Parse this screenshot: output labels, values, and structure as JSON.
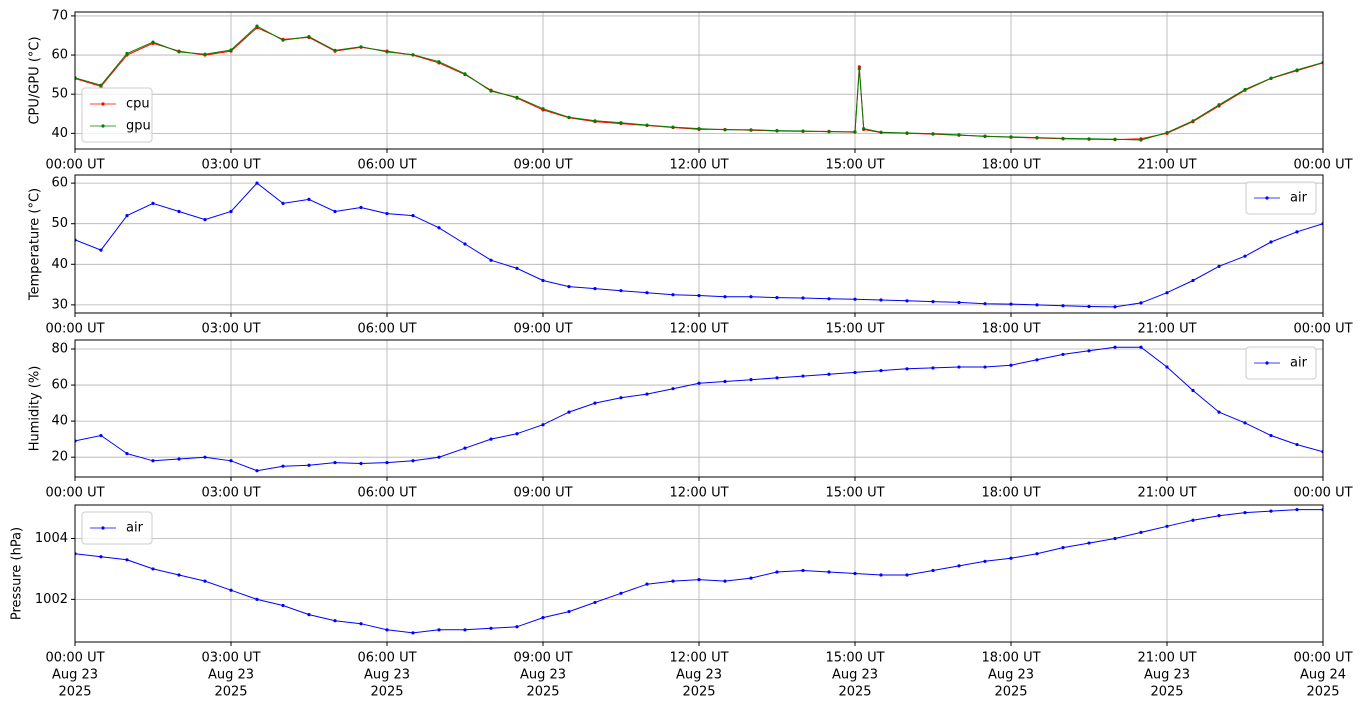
{
  "chart_data": [
    {
      "type": "line",
      "ylabel": "CPU/GPU (°C)",
      "x": [
        "2025-08-23 00:00",
        "2025-08-23 00:30",
        "2025-08-23 01:00",
        "2025-08-23 01:30",
        "2025-08-23 02:00",
        "2025-08-23 02:30",
        "2025-08-23 03:00",
        "2025-08-23 03:30",
        "2025-08-23 04:00",
        "2025-08-23 04:30",
        "2025-08-23 05:00",
        "2025-08-23 05:30",
        "2025-08-23 06:00",
        "2025-08-23 06:30",
        "2025-08-23 07:00",
        "2025-08-23 07:30",
        "2025-08-23 08:00",
        "2025-08-23 08:30",
        "2025-08-23 09:00",
        "2025-08-23 09:30",
        "2025-08-23 10:00",
        "2025-08-23 10:30",
        "2025-08-23 11:00",
        "2025-08-23 11:30",
        "2025-08-23 12:00",
        "2025-08-23 12:30",
        "2025-08-23 13:00",
        "2025-08-23 13:30",
        "2025-08-23 14:00",
        "2025-08-23 14:30",
        "2025-08-23 15:00",
        "2025-08-23 15:05",
        "2025-08-23 15:10",
        "2025-08-23 15:30",
        "2025-08-23 16:00",
        "2025-08-23 16:30",
        "2025-08-23 17:00",
        "2025-08-23 17:30",
        "2025-08-23 18:00",
        "2025-08-23 18:30",
        "2025-08-23 19:00",
        "2025-08-23 19:30",
        "2025-08-23 20:00",
        "2025-08-23 20:30",
        "2025-08-23 21:00",
        "2025-08-23 21:30",
        "2025-08-23 22:00",
        "2025-08-23 22:30",
        "2025-08-23 23:00",
        "2025-08-23 23:30",
        "2025-08-24 00:00"
      ],
      "series": [
        {
          "name": "cpu",
          "color": "#ff0000",
          "values": [
            54,
            52,
            60,
            63,
            61,
            60,
            61,
            67,
            64,
            64.5,
            61,
            62,
            61,
            60,
            58,
            55,
            51,
            49,
            46,
            44,
            43,
            42.5,
            42,
            41.5,
            41,
            41,
            40.8,
            40.6,
            40.5,
            40.5,
            40.3,
            57,
            41,
            40.2,
            40,
            39.8,
            39.5,
            39.3,
            39,
            38.8,
            38.6,
            38.5,
            38.4,
            38.6,
            40,
            43,
            47,
            51,
            54,
            56,
            58
          ]
        },
        {
          "name": "gpu",
          "color": "#008000",
          "values": [
            54.2,
            52.3,
            60.4,
            63.3,
            60.8,
            60.2,
            61.3,
            67.4,
            63.8,
            64.7,
            61.2,
            62.1,
            60.8,
            60.1,
            58.3,
            55.2,
            50.8,
            49.2,
            46.3,
            44.1,
            43.2,
            42.7,
            42.1,
            41.6,
            41.2,
            40.9,
            40.9,
            40.7,
            40.6,
            40.4,
            40.4,
            56.5,
            41.2,
            40.3,
            40.1,
            39.9,
            39.6,
            39.2,
            39.1,
            38.9,
            38.7,
            38.6,
            38.5,
            38.3,
            40.2,
            43.2,
            47.3,
            51.2,
            54.1,
            56.2,
            58.1
          ]
        }
      ],
      "xlim": [
        "2025-08-23 00:00",
        "2025-08-24 00:00"
      ],
      "xticks": [
        {
          "value": "2025-08-23 00:00",
          "label": "00:00 UT"
        },
        {
          "value": "2025-08-23 03:00",
          "label": "03:00 UT"
        },
        {
          "value": "2025-08-23 06:00",
          "label": "06:00 UT"
        },
        {
          "value": "2025-08-23 09:00",
          "label": "09:00 UT"
        },
        {
          "value": "2025-08-23 12:00",
          "label": "12:00 UT"
        },
        {
          "value": "2025-08-23 15:00",
          "label": "15:00 UT"
        },
        {
          "value": "2025-08-23 18:00",
          "label": "18:00 UT"
        },
        {
          "value": "2025-08-23 21:00",
          "label": "21:00 UT"
        },
        {
          "value": "2025-08-24 00:00",
          "label": "00:00 UT"
        }
      ],
      "ylim": [
        36,
        71
      ],
      "yticks": [
        40,
        50,
        60,
        70
      ],
      "grid": true,
      "legend": "lower left"
    },
    {
      "type": "line",
      "ylabel": "Temperature (°C)",
      "x": [
        "2025-08-23 00:00",
        "2025-08-23 00:30",
        "2025-08-23 01:00",
        "2025-08-23 01:30",
        "2025-08-23 02:00",
        "2025-08-23 02:30",
        "2025-08-23 03:00",
        "2025-08-23 03:30",
        "2025-08-23 04:00",
        "2025-08-23 04:30",
        "2025-08-23 05:00",
        "2025-08-23 05:30",
        "2025-08-23 06:00",
        "2025-08-23 06:30",
        "2025-08-23 07:00",
        "2025-08-23 07:30",
        "2025-08-23 08:00",
        "2025-08-23 08:30",
        "2025-08-23 09:00",
        "2025-08-23 09:30",
        "2025-08-23 10:00",
        "2025-08-23 10:30",
        "2025-08-23 11:00",
        "2025-08-23 11:30",
        "2025-08-23 12:00",
        "2025-08-23 12:30",
        "2025-08-23 13:00",
        "2025-08-23 13:30",
        "2025-08-23 14:00",
        "2025-08-23 14:30",
        "2025-08-23 15:00",
        "2025-08-23 15:30",
        "2025-08-23 16:00",
        "2025-08-23 16:30",
        "2025-08-23 17:00",
        "2025-08-23 17:30",
        "2025-08-23 18:00",
        "2025-08-23 18:30",
        "2025-08-23 19:00",
        "2025-08-23 19:30",
        "2025-08-23 20:00",
        "2025-08-23 20:30",
        "2025-08-23 21:00",
        "2025-08-23 21:30",
        "2025-08-23 22:00",
        "2025-08-23 22:30",
        "2025-08-23 23:00",
        "2025-08-23 23:30",
        "2025-08-24 00:00"
      ],
      "series": [
        {
          "name": "air",
          "color": "#0000ff",
          "values": [
            46,
            43.5,
            52,
            55,
            53,
            51,
            53,
            60,
            55,
            56,
            53,
            54,
            52.5,
            52,
            49,
            45,
            41,
            39,
            36,
            34.5,
            34,
            33.5,
            33,
            32.5,
            32.3,
            32,
            32,
            31.8,
            31.7,
            31.5,
            31.4,
            31.2,
            31,
            30.8,
            30.6,
            30.3,
            30.2,
            30,
            29.8,
            29.6,
            29.5,
            30.5,
            33,
            36,
            39.5,
            42,
            45.5,
            48,
            50
          ]
        }
      ],
      "xlim": [
        "2025-08-23 00:00",
        "2025-08-24 00:00"
      ],
      "xticks": [
        {
          "value": "2025-08-23 00:00",
          "label": "00:00 UT"
        },
        {
          "value": "2025-08-23 03:00",
          "label": "03:00 UT"
        },
        {
          "value": "2025-08-23 06:00",
          "label": "06:00 UT"
        },
        {
          "value": "2025-08-23 09:00",
          "label": "09:00 UT"
        },
        {
          "value": "2025-08-23 12:00",
          "label": "12:00 UT"
        },
        {
          "value": "2025-08-23 15:00",
          "label": "15:00 UT"
        },
        {
          "value": "2025-08-23 18:00",
          "label": "18:00 UT"
        },
        {
          "value": "2025-08-23 21:00",
          "label": "21:00 UT"
        },
        {
          "value": "2025-08-24 00:00",
          "label": "00:00 UT"
        }
      ],
      "ylim": [
        28,
        62
      ],
      "yticks": [
        30,
        40,
        50,
        60
      ],
      "grid": true,
      "legend": "upper right"
    },
    {
      "type": "line",
      "ylabel": "Humidity (%)",
      "x": [
        "2025-08-23 00:00",
        "2025-08-23 00:30",
        "2025-08-23 01:00",
        "2025-08-23 01:30",
        "2025-08-23 02:00",
        "2025-08-23 02:30",
        "2025-08-23 03:00",
        "2025-08-23 03:30",
        "2025-08-23 04:00",
        "2025-08-23 04:30",
        "2025-08-23 05:00",
        "2025-08-23 05:30",
        "2025-08-23 06:00",
        "2025-08-23 06:30",
        "2025-08-23 07:00",
        "2025-08-23 07:30",
        "2025-08-23 08:00",
        "2025-08-23 08:30",
        "2025-08-23 09:00",
        "2025-08-23 09:30",
        "2025-08-23 10:00",
        "2025-08-23 10:30",
        "2025-08-23 11:00",
        "2025-08-23 11:30",
        "2025-08-23 12:00",
        "2025-08-23 12:30",
        "2025-08-23 13:00",
        "2025-08-23 13:30",
        "2025-08-23 14:00",
        "2025-08-23 14:30",
        "2025-08-23 15:00",
        "2025-08-23 15:30",
        "2025-08-23 16:00",
        "2025-08-23 16:30",
        "2025-08-23 17:00",
        "2025-08-23 17:30",
        "2025-08-23 18:00",
        "2025-08-23 18:30",
        "2025-08-23 19:00",
        "2025-08-23 19:30",
        "2025-08-23 20:00",
        "2025-08-23 20:30",
        "2025-08-23 21:00",
        "2025-08-23 21:30",
        "2025-08-23 22:00",
        "2025-08-23 22:30",
        "2025-08-23 23:00",
        "2025-08-23 23:30",
        "2025-08-24 00:00"
      ],
      "series": [
        {
          "name": "air",
          "color": "#0000ff",
          "values": [
            29,
            32,
            22,
            18,
            19,
            20,
            18,
            12.5,
            15,
            15.5,
            17,
            16.5,
            17,
            18,
            20,
            25,
            30,
            33,
            38,
            45,
            50,
            53,
            55,
            58,
            61,
            62,
            63,
            64,
            65,
            66,
            67,
            68,
            69,
            69.5,
            70,
            70,
            71,
            74,
            77,
            79,
            81,
            81,
            70,
            57,
            45,
            39,
            32,
            27,
            23
          ]
        }
      ],
      "xlim": [
        "2025-08-23 00:00",
        "2025-08-24 00:00"
      ],
      "xticks": [
        {
          "value": "2025-08-23 00:00",
          "label": "00:00 UT"
        },
        {
          "value": "2025-08-23 03:00",
          "label": "03:00 UT"
        },
        {
          "value": "2025-08-23 06:00",
          "label": "06:00 UT"
        },
        {
          "value": "2025-08-23 09:00",
          "label": "09:00 UT"
        },
        {
          "value": "2025-08-23 12:00",
          "label": "12:00 UT"
        },
        {
          "value": "2025-08-23 15:00",
          "label": "15:00 UT"
        },
        {
          "value": "2025-08-23 18:00",
          "label": "18:00 UT"
        },
        {
          "value": "2025-08-23 21:00",
          "label": "21:00 UT"
        },
        {
          "value": "2025-08-24 00:00",
          "label": "00:00 UT"
        }
      ],
      "ylim": [
        9,
        85
      ],
      "yticks": [
        20,
        40,
        60,
        80
      ],
      "grid": true,
      "legend": "upper right"
    },
    {
      "type": "line",
      "ylabel": "Pressure (hPa)",
      "x": [
        "2025-08-23 00:00",
        "2025-08-23 00:30",
        "2025-08-23 01:00",
        "2025-08-23 01:30",
        "2025-08-23 02:00",
        "2025-08-23 02:30",
        "2025-08-23 03:00",
        "2025-08-23 03:30",
        "2025-08-23 04:00",
        "2025-08-23 04:30",
        "2025-08-23 05:00",
        "2025-08-23 05:30",
        "2025-08-23 06:00",
        "2025-08-23 06:30",
        "2025-08-23 07:00",
        "2025-08-23 07:30",
        "2025-08-23 08:00",
        "2025-08-23 08:30",
        "2025-08-23 09:00",
        "2025-08-23 09:30",
        "2025-08-23 10:00",
        "2025-08-23 10:30",
        "2025-08-23 11:00",
        "2025-08-23 11:30",
        "2025-08-23 12:00",
        "2025-08-23 12:30",
        "2025-08-23 13:00",
        "2025-08-23 13:30",
        "2025-08-23 14:00",
        "2025-08-23 14:30",
        "2025-08-23 15:00",
        "2025-08-23 15:30",
        "2025-08-23 16:00",
        "2025-08-23 16:30",
        "2025-08-23 17:00",
        "2025-08-23 17:30",
        "2025-08-23 18:00",
        "2025-08-23 18:30",
        "2025-08-23 19:00",
        "2025-08-23 19:30",
        "2025-08-23 20:00",
        "2025-08-23 20:30",
        "2025-08-23 21:00",
        "2025-08-23 21:30",
        "2025-08-23 22:00",
        "2025-08-23 22:30",
        "2025-08-23 23:00",
        "2025-08-23 23:30",
        "2025-08-24 00:00"
      ],
      "series": [
        {
          "name": "air",
          "color": "#0000ff",
          "values": [
            1003.5,
            1003.4,
            1003.3,
            1003.0,
            1002.8,
            1002.6,
            1002.3,
            1002.0,
            1001.8,
            1001.5,
            1001.3,
            1001.2,
            1001.0,
            1000.9,
            1001.0,
            1001.0,
            1001.05,
            1001.1,
            1001.4,
            1001.6,
            1001.9,
            1002.2,
            1002.5,
            1002.6,
            1002.65,
            1002.6,
            1002.7,
            1002.9,
            1002.95,
            1002.9,
            1002.85,
            1002.8,
            1002.8,
            1002.95,
            1003.1,
            1003.25,
            1003.35,
            1003.5,
            1003.7,
            1003.85,
            1004.0,
            1004.2,
            1004.4,
            1004.6,
            1004.75,
            1004.85,
            1004.9,
            1004.95,
            1004.95
          ]
        }
      ],
      "xlim": [
        "2025-08-23 00:00",
        "2025-08-24 00:00"
      ],
      "xticks": [
        {
          "value": "2025-08-23 00:00",
          "label": [
            "00:00 UT",
            "Aug 23",
            "2025"
          ]
        },
        {
          "value": "2025-08-23 03:00",
          "label": [
            "03:00 UT",
            "Aug 23",
            "2025"
          ]
        },
        {
          "value": "2025-08-23 06:00",
          "label": [
            "06:00 UT",
            "Aug 23",
            "2025"
          ]
        },
        {
          "value": "2025-08-23 09:00",
          "label": [
            "09:00 UT",
            "Aug 23",
            "2025"
          ]
        },
        {
          "value": "2025-08-23 12:00",
          "label": [
            "12:00 UT",
            "Aug 23",
            "2025"
          ]
        },
        {
          "value": "2025-08-23 15:00",
          "label": [
            "15:00 UT",
            "Aug 23",
            "2025"
          ]
        },
        {
          "value": "2025-08-23 18:00",
          "label": [
            "18:00 UT",
            "Aug 23",
            "2025"
          ]
        },
        {
          "value": "2025-08-23 21:00",
          "label": [
            "21:00 UT",
            "Aug 23",
            "2025"
          ]
        },
        {
          "value": "2025-08-24 00:00",
          "label": [
            "00:00 UT",
            "Aug 24",
            "2025"
          ]
        }
      ],
      "ylim": [
        1000.6,
        1005.1
      ],
      "yticks": [
        1002,
        1004
      ],
      "grid": true,
      "legend": "upper left"
    }
  ]
}
